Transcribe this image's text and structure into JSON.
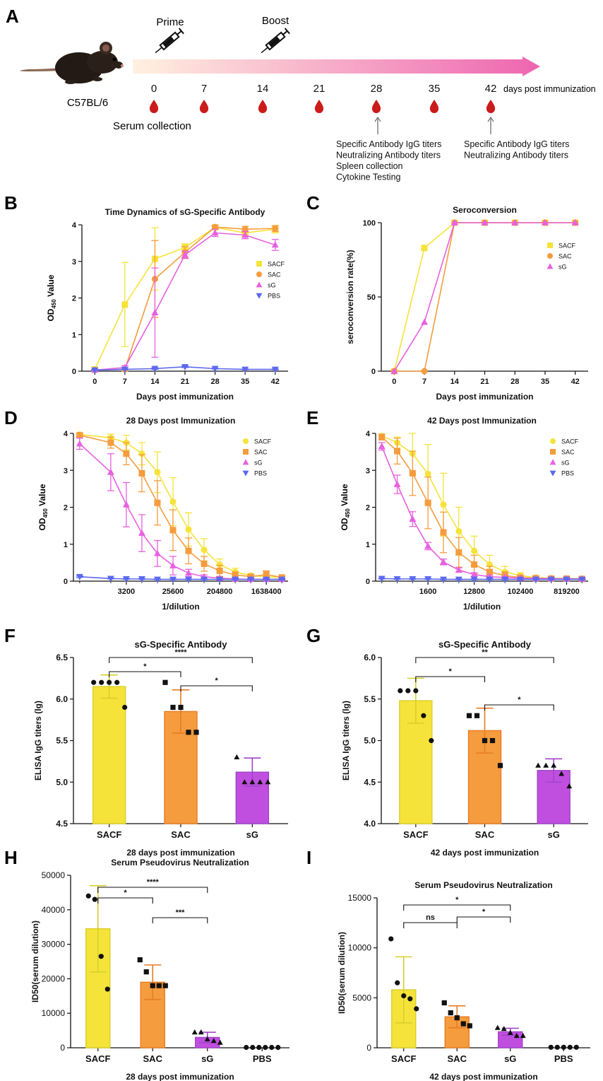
{
  "colors": {
    "SACF": "#f5e33a",
    "SAC": "#f59c3e",
    "sG": "#c04fe0",
    "PBS": "#5a6cf0",
    "SACF_line": "#d9cf2a",
    "SAC_line": "#e87c22",
    "sG_line": "#a044c9",
    "sG_curve": "#e860e0",
    "PBS_curve": "#5b69ee",
    "blood": "#cc1b1b",
    "arrow_start": "#fff1e0",
    "arrow_end": "#ee65b0"
  },
  "panel_letters": {
    "A": "A",
    "B": "B",
    "C": "C",
    "D": "D",
    "E": "E",
    "F": "F",
    "G": "G",
    "H": "H",
    "I": "I"
  },
  "timeline": {
    "mouse_label": "C57BL/6",
    "prime_label": "Prime",
    "boost_label": "Boost",
    "days": [
      "0",
      "7",
      "14",
      "21",
      "28",
      "35",
      "42"
    ],
    "days_suffix": "days post immunization",
    "serum_label": "Serum collection",
    "note28": [
      "Specific Antibody IgG titers",
      "Neutralizing Antibody titers",
      "Spleen collection",
      "Cytokine Testing"
    ],
    "note42": [
      "Specific Antibody IgG titers",
      "Neutralizing Antibody titers"
    ]
  },
  "chart_data": [
    {
      "id": "B",
      "type": "line",
      "title": "Time Dynamics of sG-Specific Antibody",
      "xlabel": "Days post immunization",
      "ylabel": "OD450 Value",
      "x": [
        0,
        7,
        14,
        21,
        28,
        35,
        42
      ],
      "xlim": [
        -3,
        45
      ],
      "ylim": [
        0,
        4
      ],
      "yticks": [
        0,
        1,
        2,
        3,
        4
      ],
      "series": [
        {
          "name": "SACF",
          "marker": "square",
          "values": [
            0.05,
            1.82,
            3.07,
            3.38,
            3.93,
            3.78,
            3.88
          ],
          "err": [
            0.02,
            1.15,
            0.85,
            0.1,
            0.05,
            0.1,
            0.1
          ]
        },
        {
          "name": "SAC",
          "marker": "circle",
          "values": [
            0.03,
            0.05,
            2.52,
            3.25,
            3.94,
            3.88,
            3.9
          ],
          "err": [
            0.02,
            0.05,
            1.05,
            0.15,
            0.05,
            0.08,
            0.08
          ]
        },
        {
          "name": "sG",
          "marker": "triangle",
          "values": [
            0.03,
            0.1,
            1.6,
            3.18,
            3.78,
            3.72,
            3.45
          ],
          "err": [
            0.02,
            0.05,
            1.22,
            0.1,
            0.1,
            0.1,
            0.15
          ]
        },
        {
          "name": "PBS",
          "marker": "triangle-down",
          "values": [
            0.03,
            0.05,
            0.07,
            0.12,
            0.07,
            0.05,
            0.05
          ],
          "err": [
            0.01,
            0.01,
            0.02,
            0.02,
            0.01,
            0.01,
            0.01
          ]
        }
      ]
    },
    {
      "id": "C",
      "type": "line",
      "title": "Seroconversion",
      "xlabel": "Days post immunization",
      "ylabel": "seroconversion rate(%)",
      "x": [
        0,
        7,
        14,
        21,
        28,
        35,
        42
      ],
      "xlim": [
        -3,
        45
      ],
      "ylim": [
        0,
        100
      ],
      "yticks": [
        0,
        50,
        100
      ],
      "series": [
        {
          "name": "SACF",
          "marker": "square",
          "values": [
            0,
            83,
            100,
            100,
            100,
            100,
            100
          ]
        },
        {
          "name": "SAC",
          "marker": "circle",
          "values": [
            0,
            0,
            100,
            100,
            100,
            100,
            100
          ]
        },
        {
          "name": "sG",
          "marker": "triangle",
          "values": [
            0,
            33,
            100,
            100,
            100,
            100,
            100
          ]
        }
      ]
    },
    {
      "id": "D",
      "type": "line",
      "title": "28 Days post Immunization",
      "xlabel": "1/dilution",
      "ylabel": "OD450 Value",
      "x": [
        400,
        1600,
        3200,
        6400,
        12800,
        25600,
        51200,
        102400,
        204800,
        409600,
        819200,
        1638400,
        3276800
      ],
      "xtick_labels": [
        "3200",
        "25600",
        "204800",
        "1638400"
      ],
      "xticks_at": [
        3200,
        25600,
        204800,
        1638400
      ],
      "ylim": [
        0,
        4
      ],
      "yticks": [
        0,
        1,
        2,
        3,
        4
      ],
      "series": [
        {
          "name": "SACF",
          "marker": "circle",
          "values": [
            3.97,
            3.88,
            3.75,
            3.45,
            2.95,
            2.15,
            1.4,
            0.85,
            0.45,
            0.25,
            0.15,
            0.12,
            0.1
          ],
          "err": [
            0.03,
            0.1,
            0.2,
            0.3,
            0.55,
            0.65,
            0.45,
            0.3,
            0.15,
            0.1,
            0.05,
            0.04,
            0.03
          ]
        },
        {
          "name": "SAC",
          "marker": "square",
          "values": [
            3.95,
            3.75,
            3.45,
            2.92,
            2.12,
            1.38,
            0.82,
            0.47,
            0.28,
            0.17,
            0.12,
            0.18,
            0.1
          ],
          "err": [
            0.04,
            0.15,
            0.3,
            0.5,
            0.6,
            0.55,
            0.35,
            0.2,
            0.15,
            0.08,
            0.05,
            0.1,
            0.04
          ]
        },
        {
          "name": "sG",
          "marker": "triangle",
          "values": [
            3.72,
            2.95,
            2.07,
            1.3,
            0.75,
            0.42,
            0.22,
            0.12,
            0.08,
            0.06,
            0.05,
            0.05,
            0.05
          ],
          "err": [
            0.15,
            0.5,
            0.6,
            0.5,
            0.35,
            0.25,
            0.1,
            0.05,
            0.03,
            0.02,
            0.02,
            0.02,
            0.02
          ]
        },
        {
          "name": "PBS",
          "marker": "triangle-down",
          "values": [
            0.12,
            0.07,
            0.06,
            0.06,
            0.05,
            0.05,
            0.05,
            0.05,
            0.05,
            0.05,
            0.05,
            0.05,
            0.05
          ],
          "err": [
            0.02,
            0.01,
            0.01,
            0.01,
            0.01,
            0.01,
            0.01,
            0.01,
            0.01,
            0.01,
            0.01,
            0.01,
            0.01
          ]
        }
      ]
    },
    {
      "id": "E",
      "type": "line",
      "title": "42 Days post Immunization",
      "xlabel": "1/dilution",
      "ylabel": "OD450 Value",
      "x": [
        200,
        400,
        800,
        1600,
        3200,
        6400,
        12800,
        25600,
        51200,
        102400,
        204800,
        409600,
        819200,
        1638400
      ],
      "xtick_labels": [
        "1600",
        "12800",
        "102400",
        "819200"
      ],
      "xticks_at": [
        1600,
        12800,
        102400,
        819200
      ],
      "ylim": [
        0,
        4
      ],
      "yticks": [
        0,
        1,
        2,
        3,
        4
      ],
      "series": [
        {
          "name": "SACF",
          "marker": "circle",
          "values": [
            3.93,
            3.75,
            3.45,
            2.9,
            2.07,
            1.35,
            0.82,
            0.45,
            0.25,
            0.15,
            0.1,
            0.08,
            0.07,
            0.07
          ],
          "err": [
            0.05,
            0.15,
            0.55,
            0.8,
            0.85,
            0.65,
            0.4,
            0.25,
            0.15,
            0.08,
            0.05,
            0.04,
            0.03,
            0.03
          ]
        },
        {
          "name": "SAC",
          "marker": "square",
          "values": [
            3.9,
            3.52,
            2.92,
            2.12,
            1.32,
            0.78,
            0.45,
            0.25,
            0.15,
            0.1,
            0.08,
            0.07,
            0.07,
            0.06
          ],
          "err": [
            0.08,
            0.35,
            0.6,
            0.7,
            0.55,
            0.4,
            0.25,
            0.15,
            0.1,
            0.05,
            0.04,
            0.03,
            0.03,
            0.03
          ]
        },
        {
          "name": "sG",
          "marker": "triangle",
          "values": [
            3.65,
            2.62,
            1.68,
            0.95,
            0.52,
            0.3,
            0.18,
            0.12,
            0.1,
            0.08,
            0.07,
            0.07,
            0.06,
            0.06
          ],
          "err": [
            0.1,
            0.25,
            0.2,
            0.1,
            0.08,
            0.06,
            0.05,
            0.04,
            0.03,
            0.03,
            0.02,
            0.02,
            0.02,
            0.02
          ]
        },
        {
          "name": "PBS",
          "marker": "triangle-down",
          "values": [
            0.07,
            0.06,
            0.06,
            0.06,
            0.05,
            0.05,
            0.05,
            0.05,
            0.05,
            0.05,
            0.05,
            0.05,
            0.05,
            0.05
          ],
          "err": [
            0.01,
            0.01,
            0.01,
            0.01,
            0.01,
            0.01,
            0.01,
            0.01,
            0.01,
            0.01,
            0.01,
            0.01,
            0.01,
            0.01
          ]
        }
      ]
    },
    {
      "id": "F",
      "type": "bar",
      "title": "sG-Specific Antibody",
      "xlabel": "28 days post immunization",
      "ylabel": "ELISA IgG titers (lg)",
      "categories": [
        "SACF",
        "SAC",
        "sG"
      ],
      "values": [
        6.15,
        5.85,
        5.12
      ],
      "err": [
        0.14,
        0.26,
        0.17
      ],
      "ylim": [
        4.5,
        6.5
      ],
      "yticks": [
        4.5,
        5.0,
        5.5,
        6.0,
        6.5
      ],
      "points": [
        [
          6.2,
          6.2,
          6.2,
          6.2,
          5.9
        ],
        [
          6.2,
          5.9,
          5.9,
          5.6,
          5.6
        ],
        [
          5.3,
          5.0,
          5.0,
          5.0,
          5.0
        ]
      ],
      "markers": [
        "circle",
        "square",
        "triangle"
      ],
      "sig": [
        {
          "from": 0,
          "to": 1,
          "label": "*"
        },
        {
          "from": 1,
          "to": 2,
          "label": "*"
        },
        {
          "from": 0,
          "to": 2,
          "label": "****"
        }
      ]
    },
    {
      "id": "G",
      "type": "bar",
      "title": "sG-Specific Antibody",
      "xlabel": "42 days post immunization",
      "ylabel": "ELISA IgG titers (lg)",
      "categories": [
        "SACF",
        "SAC",
        "sG"
      ],
      "values": [
        5.48,
        5.12,
        4.64
      ],
      "err": [
        0.27,
        0.27,
        0.14
      ],
      "ylim": [
        4.0,
        6.0
      ],
      "yticks": [
        4.0,
        4.5,
        5.0,
        5.5,
        6.0
      ],
      "points": [
        [
          5.6,
          5.6,
          5.6,
          5.3,
          5.0
        ],
        [
          5.3,
          5.3,
          5.0,
          5.0,
          4.7
        ],
        [
          4.7,
          4.7,
          4.7,
          4.6,
          4.45
        ]
      ],
      "markers": [
        "circle",
        "square",
        "triangle"
      ],
      "sig": [
        {
          "from": 0,
          "to": 1,
          "label": "*"
        },
        {
          "from": 1,
          "to": 2,
          "label": "*"
        },
        {
          "from": 0,
          "to": 2,
          "label": "**"
        }
      ]
    },
    {
      "id": "H",
      "type": "bar",
      "title": "Serum Pseudovirus Neutralization",
      "xlabel": "28 days post immunization",
      "ylabel": "ID50(serum dilution)",
      "categories": [
        "SACF",
        "SAC",
        "sG",
        "PBS"
      ],
      "values": [
        34500,
        19000,
        3000,
        100
      ],
      "err": [
        12500,
        5000,
        1500,
        0
      ],
      "ylim": [
        0,
        50000
      ],
      "yticks": [
        0,
        10000,
        20000,
        30000,
        40000,
        50000
      ],
      "points": [
        [
          44000,
          43000,
          26500,
          17000
        ],
        [
          25500,
          22000,
          18000,
          18000,
          18000
        ],
        [
          4500,
          4500,
          2500,
          2000,
          1500
        ],
        [
          100,
          100,
          100,
          100,
          100,
          100
        ]
      ],
      "markers": [
        "circle",
        "square",
        "triangle",
        "circle"
      ],
      "sig": [
        {
          "from": 0,
          "to": 1,
          "label": "*"
        },
        {
          "from": 1,
          "to": 2,
          "label": "***"
        },
        {
          "from": 0,
          "to": 2,
          "label": "****"
        }
      ]
    },
    {
      "id": "I",
      "type": "bar",
      "title": "Serum Pseudovirus Neutralization",
      "xlabel": "42 days post immunization",
      "ylabel": "ID50(serum dilution)",
      "categories": [
        "SACF",
        "SAC",
        "sG",
        "PBS"
      ],
      "values": [
        5800,
        3100,
        1600,
        50
      ],
      "err": [
        3300,
        1100,
        350,
        0
      ],
      "ylim": [
        0,
        15000
      ],
      "yticks": [
        0,
        5000,
        10000,
        15000
      ],
      "points": [
        [
          10900,
          6500,
          5200,
          4900,
          3900
        ],
        [
          4500,
          3500,
          3000,
          2400,
          2200
        ],
        [
          2000,
          1900,
          1500,
          1200,
          1200
        ],
        [
          50,
          50,
          50,
          50,
          50
        ]
      ],
      "markers": [
        "circle",
        "square",
        "triangle",
        "circle"
      ],
      "sig": [
        {
          "from": 0,
          "to": 1,
          "label": "ns"
        },
        {
          "from": 1,
          "to": 2,
          "label": "*"
        },
        {
          "from": 0,
          "to": 2,
          "label": "*"
        }
      ]
    }
  ]
}
